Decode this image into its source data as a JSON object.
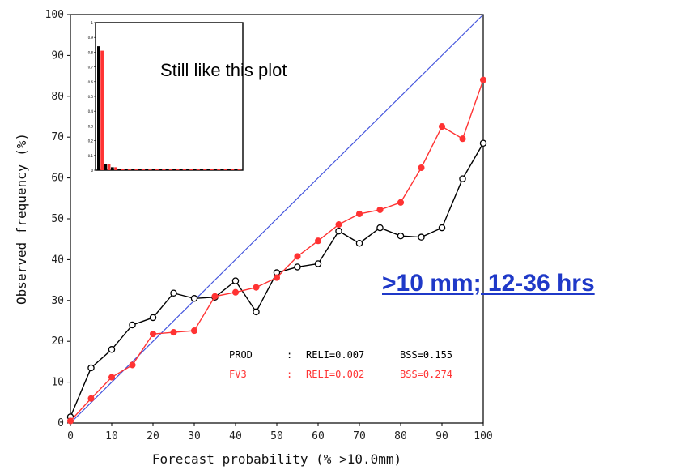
{
  "headline": ">10 mm; 12-36 hrs",
  "inset_caption": "Still like this plot",
  "stats": {
    "prod": {
      "name": "PROD",
      "sep": ":",
      "reli": "RELI=0.007",
      "bss": "BSS=0.155",
      "color": "#000000"
    },
    "fv3": {
      "name": "FV3",
      "sep": ":",
      "reli": "RELI=0.002",
      "bss": "BSS=0.274",
      "color": "#ff3333"
    }
  },
  "chart_data": [
    {
      "type": "line",
      "xlabel": "Forecast probability (% >10.0mm)",
      "ylabel": "Observed frequency (%)",
      "xlim": [
        0,
        100
      ],
      "ylim": [
        0,
        100
      ],
      "xticks": [
        0,
        10,
        20,
        30,
        40,
        50,
        60,
        70,
        80,
        90,
        100
      ],
      "yticks": [
        0,
        10,
        20,
        30,
        40,
        50,
        60,
        70,
        80,
        90,
        100
      ],
      "reference_line": {
        "from": [
          0,
          0
        ],
        "to": [
          100,
          100
        ],
        "color": "#4455dd"
      },
      "x": [
        0,
        5,
        10,
        15,
        20,
        25,
        30,
        35,
        40,
        45,
        50,
        55,
        60,
        65,
        70,
        75,
        80,
        85,
        90,
        95,
        100
      ],
      "series": [
        {
          "key": "prod",
          "color": "#000000",
          "marker": "open-circle",
          "values": [
            1.5,
            13.5,
            18,
            24,
            25.8,
            31.8,
            30.5,
            30.8,
            34.8,
            27.2,
            36.8,
            38.2,
            39,
            47,
            44,
            47.8,
            45.8,
            45.5,
            47.8,
            59.8,
            68.5
          ]
        },
        {
          "key": "fv3",
          "color": "#ff3333",
          "marker": "filled-circle",
          "values": [
            0.5,
            6,
            11.2,
            14.2,
            21.8,
            22.2,
            22.6,
            31,
            32,
            33.2,
            35.6,
            40.8,
            44.6,
            48.6,
            51.2,
            52.2,
            54,
            62.5,
            72.6,
            69.6,
            84
          ]
        }
      ]
    },
    {
      "type": "bar",
      "role": "inset-histogram",
      "ylim": [
        0,
        1
      ],
      "yticks": [
        "0",
        "0.1",
        "0.2",
        "0.3",
        "0.4",
        "0.5",
        "0.6",
        "0.7",
        "0.8",
        "0.9",
        "1"
      ],
      "bins": 21,
      "series": [
        {
          "key": "prod",
          "color": "#000000",
          "values": [
            0.84,
            0.04,
            0.02,
            0.01,
            0.01,
            0.005,
            0.005,
            0.004,
            0.003,
            0.003,
            0.003,
            0.002,
            0.002,
            0.002,
            0.002,
            0.002,
            0.002,
            0.002,
            0.001,
            0.001,
            0.005
          ]
        },
        {
          "key": "fv3",
          "color": "#ff3333",
          "values": [
            0.81,
            0.04,
            0.02,
            0.01,
            0.008,
            0.006,
            0.005,
            0.004,
            0.003,
            0.003,
            0.003,
            0.002,
            0.002,
            0.002,
            0.002,
            0.002,
            0.002,
            0.002,
            0.001,
            0.001,
            0.004
          ]
        }
      ]
    }
  ]
}
